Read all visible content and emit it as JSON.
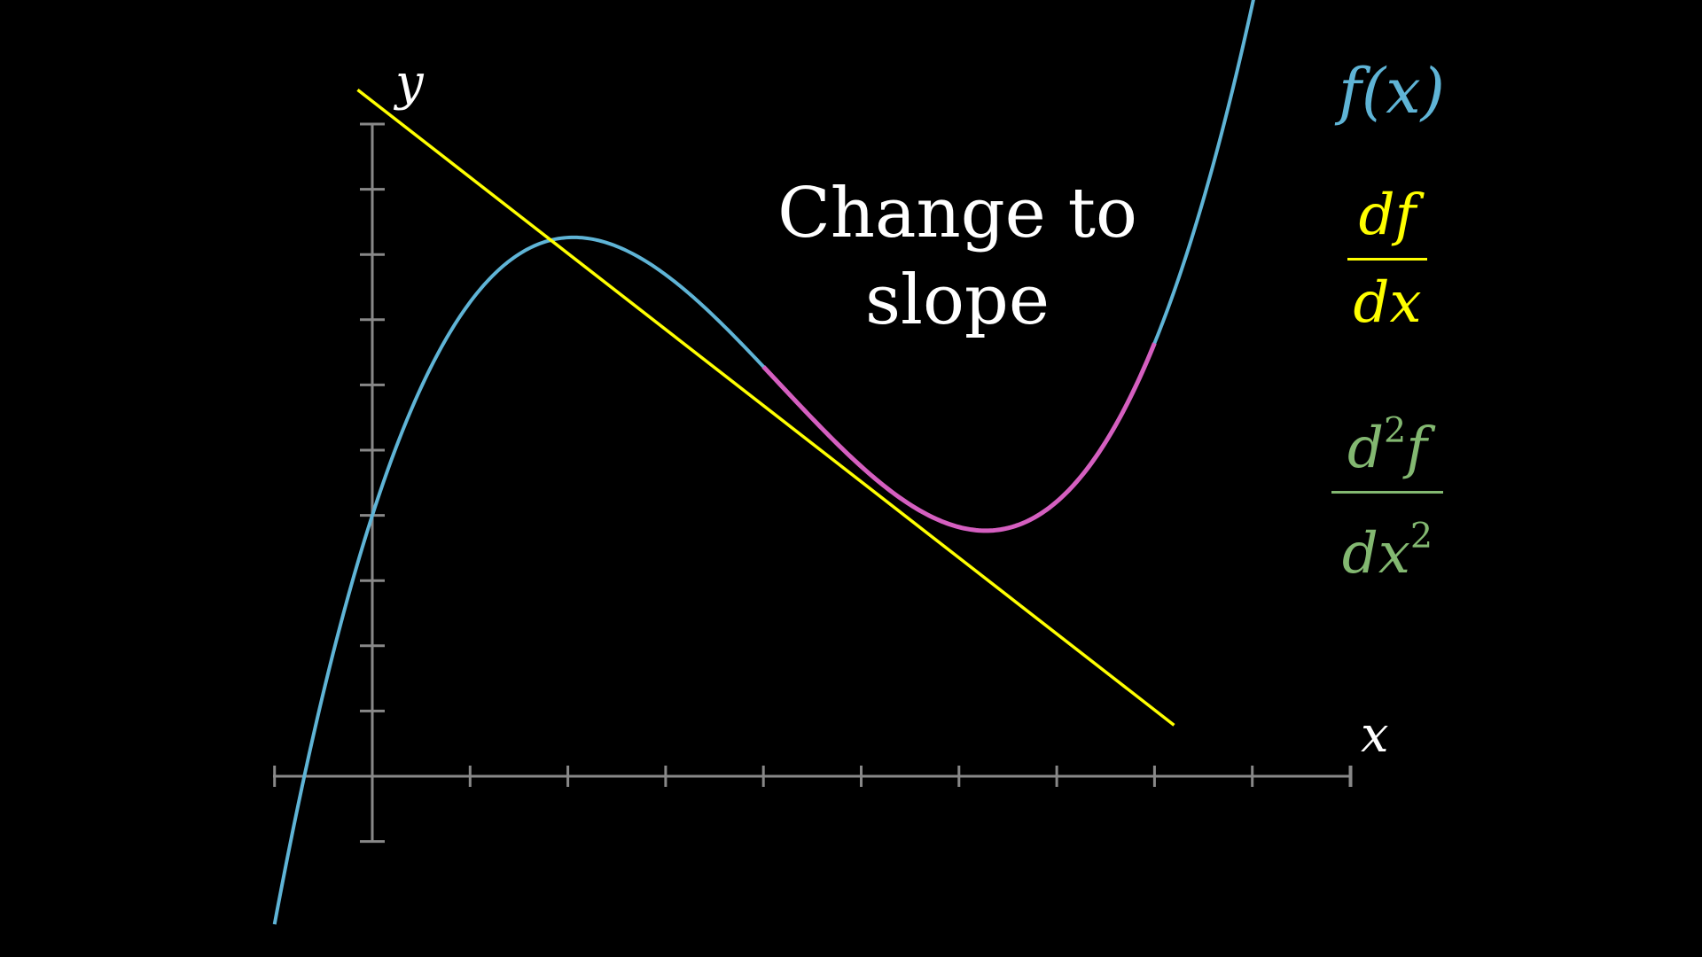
{
  "caption": {
    "line1": "Change to",
    "line2": "slope"
  },
  "axes": {
    "x_label": "x",
    "y_label": "y"
  },
  "legend": {
    "f": {
      "text": "f(x)",
      "color": "#5fb4d6"
    },
    "df": {
      "num": "df",
      "den": "dx",
      "color": "#ffff00"
    },
    "d2f": {
      "num_base": "d",
      "num_exp": "2",
      "num_tail": "f",
      "den_base": "dx",
      "den_exp": "2",
      "color": "#83b871"
    }
  },
  "colors": {
    "background": "#000000",
    "axes": "#888888",
    "curve": "#5fb4d6",
    "tangent": "#ffff00",
    "highlight": "#d55fc0"
  },
  "chart_data": {
    "type": "line",
    "x_ticks": [
      -1,
      1,
      2,
      3,
      4,
      5,
      6,
      7,
      8,
      9,
      10
    ],
    "y_ticks": [
      -1,
      1,
      2,
      3,
      4,
      5,
      6,
      7,
      8,
      9,
      10
    ],
    "series": [
      {
        "role": "function",
        "formula": "0.12x^3 - 1.5x^2 + 4.65x + 4",
        "color": "#5fb4d6",
        "x_range": [
          -1,
          9.85
        ]
      },
      {
        "role": "tangent",
        "formula": "-1.1667x + 10.35",
        "color": "#ffff00",
        "x_range": [
          -0.15,
          8.2
        ]
      },
      {
        "role": "highlight",
        "color": "#d55fc0",
        "x_range": [
          4,
          8
        ]
      }
    ]
  }
}
